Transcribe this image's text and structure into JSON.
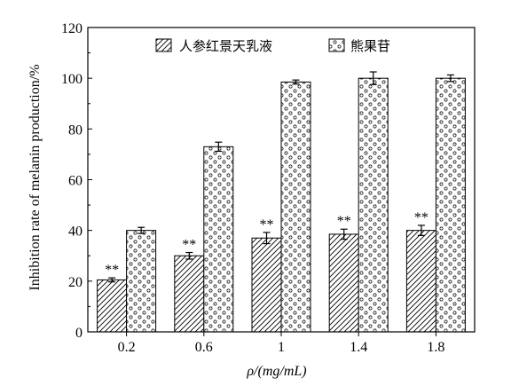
{
  "chart_data": {
    "type": "bar",
    "categories": [
      "0.2",
      "0.6",
      "1",
      "1.4",
      "1.8"
    ],
    "series": [
      {
        "name": "人参红景天乳液",
        "values": [
          20.5,
          30,
          37,
          38.5,
          40
        ],
        "errors": [
          0.8,
          1.3,
          2.2,
          2.0,
          2.0
        ],
        "significance": [
          "**",
          "**",
          "**",
          "**",
          "**"
        ],
        "pattern": "diagonal-hatch"
      },
      {
        "name": "熊果苷",
        "values": [
          40,
          73,
          98.5,
          100,
          100
        ],
        "errors": [
          1.2,
          1.8,
          0.8,
          2.5,
          1.3
        ],
        "pattern": "dots"
      }
    ],
    "xlabel": "ρ/(mg/mL)",
    "ylabel": "Inhibition rate of melanin production/%",
    "ylim": [
      0,
      120
    ],
    "yticks": [
      0,
      20,
      40,
      60,
      80,
      100,
      120
    ],
    "legend_position": "top",
    "grid": false
  }
}
